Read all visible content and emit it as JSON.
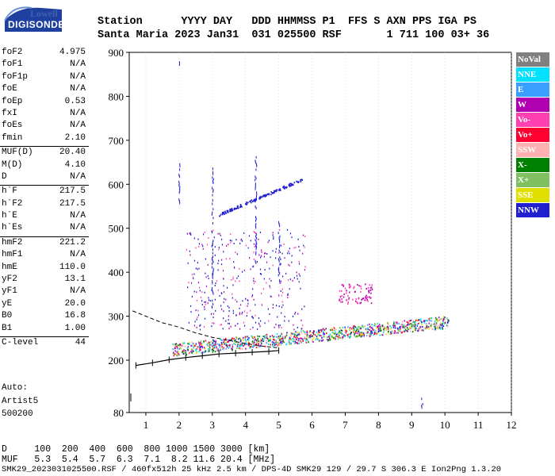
{
  "logo": {
    "top": "Lowell",
    "bottom": "DIGISONDE"
  },
  "header": {
    "line1": "Station      YYYY DAY   DDD HHMMSS P1  FFS S AXN PPS IGA PS",
    "line2": "Santa Maria 2023 Jan31  031 025500 RSF       1 711 100 03+ 36"
  },
  "parameters": [
    {
      "name": "foF2",
      "value": "4.975"
    },
    {
      "name": "foF1",
      "value": "N/A"
    },
    {
      "name": "foF1p",
      "value": "N/A"
    },
    {
      "name": "foE",
      "value": "N/A"
    },
    {
      "name": "foEp",
      "value": "0.53"
    },
    {
      "name": "fxI",
      "value": "N/A"
    },
    {
      "name": "foEs",
      "value": "N/A"
    },
    {
      "name": "fmin",
      "value": "2.10"
    },
    {
      "name": "MUF(D)",
      "value": "20.40"
    },
    {
      "name": "M(D)",
      "value": "4.10"
    },
    {
      "name": "D",
      "value": "N/A"
    },
    {
      "name": "h`F",
      "value": "217.5"
    },
    {
      "name": "h`F2",
      "value": "217.5"
    },
    {
      "name": "h`E",
      "value": "N/A"
    },
    {
      "name": "h`Es",
      "value": "N/A"
    },
    {
      "name": "hmF2",
      "value": "221.2"
    },
    {
      "name": "hmF1",
      "value": "N/A"
    },
    {
      "name": "hmE",
      "value": "110.0"
    },
    {
      "name": "yF2",
      "value": "13.1"
    },
    {
      "name": "yF1",
      "value": "N/A"
    },
    {
      "name": "yE",
      "value": "20.0"
    },
    {
      "name": "B0",
      "value": "16.8"
    },
    {
      "name": "B1",
      "value": "1.00"
    },
    {
      "name": "C-level",
      "value": "44"
    }
  ],
  "auto": {
    "label": "Auto:",
    "artist": "Artist5",
    "version": "500200"
  },
  "legend": [
    {
      "label": "NoVal",
      "color": "#808080"
    },
    {
      "label": "NNE",
      "color": "#00e0ff"
    },
    {
      "label": "E",
      "color": "#3aa0ff"
    },
    {
      "label": "W",
      "color": "#b000b0"
    },
    {
      "label": "Vo-",
      "color": "#ff40b0"
    },
    {
      "label": "Vo+",
      "color": "#ff0030"
    },
    {
      "label": "SSW",
      "color": "#ffb0b0"
    },
    {
      "label": "X-",
      "color": "#008000"
    },
    {
      "label": "X+",
      "color": "#80c060"
    },
    {
      "label": "SSE",
      "color": "#e0e000"
    },
    {
      "label": "NNW",
      "color": "#2020d0"
    }
  ],
  "chart_data": {
    "type": "scatter",
    "xlabel": "",
    "ylabel": "",
    "xlim": [
      0.5,
      12
    ],
    "ylim": [
      80,
      900
    ],
    "xticks": [
      "1",
      "2",
      "3",
      "4",
      "5",
      "6",
      "7",
      "8",
      "9",
      "10",
      "11",
      "12"
    ],
    "yticks": [
      "80",
      "200",
      "300",
      "400",
      "500",
      "600",
      "700",
      "800",
      "900"
    ],
    "trace_F2_main": {
      "x": [
        1.8,
        2.5,
        3.5,
        4.5,
        5.5,
        6.5,
        7.5,
        8.5,
        9.5,
        10.1
      ],
      "y": [
        222,
        228,
        236,
        242,
        248,
        254,
        262,
        270,
        278,
        284
      ]
    },
    "trace_upper": {
      "x": [
        3.2,
        3.8,
        4.4,
        5.0,
        5.5,
        5.7
      ],
      "y": [
        532,
        548,
        568,
        590,
        610,
        652
      ]
    },
    "profile_dashed": {
      "x": [
        0.6,
        1.0,
        1.5,
        2.0,
        2.5,
        3.0,
        3.5,
        4.0,
        4.5,
        5.0
      ],
      "y": [
        312,
        300,
        285,
        275,
        262,
        252,
        245,
        238,
        232,
        228
      ]
    },
    "profile_solid": {
      "x": [
        0.7,
        1.2,
        1.7,
        2.2,
        2.7,
        3.2,
        3.7,
        4.2,
        4.7,
        5.0
      ],
      "y": [
        188,
        194,
        201,
        206,
        210,
        214,
        216,
        218,
        220,
        222
      ]
    }
  },
  "bottom": {
    "line1": "D     100  200  400  600  800 1000 1500 3000 [km]",
    "line2": "MUF   5.3  5.4  5.7  6.3  7.1  8.2 11.6 20.4 [MHz]",
    "footer": "SMK29_2023031025500.RSF / 460fx512h 25 kHz 2.5 km / DPS-4D SMK29 129 / 29.7 S 306.3 E Ion2Png 1.3.20"
  }
}
